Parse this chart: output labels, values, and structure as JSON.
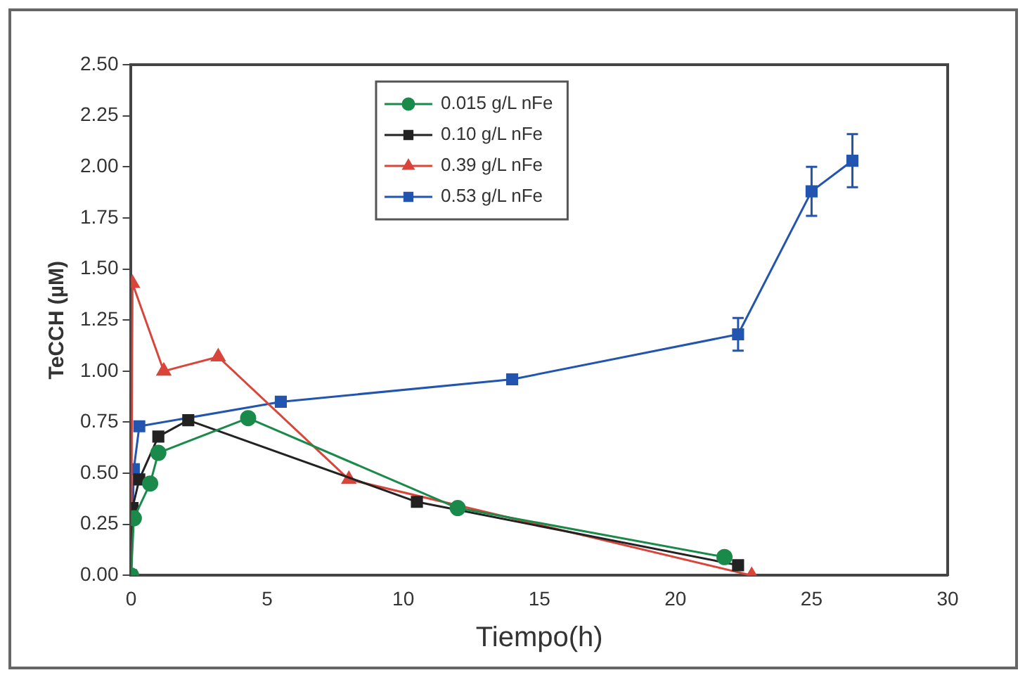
{
  "chart_data": {
    "type": "line",
    "xlabel": "Tiempo(h)",
    "ylabel": "TeCCH (µM)",
    "xlim": [
      0,
      30
    ],
    "xticks": [
      0,
      5,
      10,
      15,
      20,
      25,
      30
    ],
    "ylim": [
      0,
      2.5
    ],
    "yticks": [
      {
        "value": 0,
        "label": "0.00"
      },
      {
        "value": 0.25,
        "label": "0.25"
      },
      {
        "value": 0.5,
        "label": "0.50"
      },
      {
        "value": 0.75,
        "label": "0.75"
      },
      {
        "value": 1,
        "label": "1.00"
      },
      {
        "value": 1.25,
        "label": "1.25"
      },
      {
        "value": 1.5,
        "label": "1.50"
      },
      {
        "value": 1.75,
        "label": "1.75"
      },
      {
        "value": 2,
        "label": "2.00"
      },
      {
        "value": 2.25,
        "label": "2.25"
      },
      {
        "value": 2.5,
        "label": "2.50"
      }
    ],
    "grid": false,
    "legend": "top",
    "series": [
      {
        "name": "0.015 g/L nFe",
        "color": "#1a8a4a",
        "marker": "circle",
        "x": [
          0,
          0.1,
          0.7,
          1,
          4.3,
          12,
          21.8
        ],
        "values": [
          0,
          0.28,
          0.45,
          0.6,
          0.77,
          0.33,
          0.09
        ]
      },
      {
        "name": "0.10 g/L nFe",
        "color": "#222222",
        "marker": "square",
        "x": [
          0,
          0.05,
          0.3,
          1,
          2.1,
          10.5,
          22.3
        ],
        "values": [
          0,
          0.33,
          0.47,
          0.68,
          0.76,
          0.36,
          0.05
        ]
      },
      {
        "name": "0.39 g/L nFe",
        "color": "#d9453a",
        "marker": "triangle",
        "x": [
          0,
          0.05,
          1.2,
          3.2,
          8,
          22.8
        ],
        "values": [
          0,
          1.43,
          1,
          1.07,
          0.47,
          0
        ]
      },
      {
        "name": "0.53 g/L nFe",
        "color": "#2255b0",
        "marker": "square",
        "x": [
          0,
          0.1,
          0.3,
          5.5,
          14,
          22.3,
          25,
          26.5
        ],
        "values": [
          0,
          0.52,
          0.73,
          0.85,
          0.96,
          1.18,
          1.88,
          2.03
        ],
        "errors": [
          null,
          null,
          null,
          null,
          null,
          0.08,
          0.12,
          0.13
        ]
      }
    ]
  }
}
